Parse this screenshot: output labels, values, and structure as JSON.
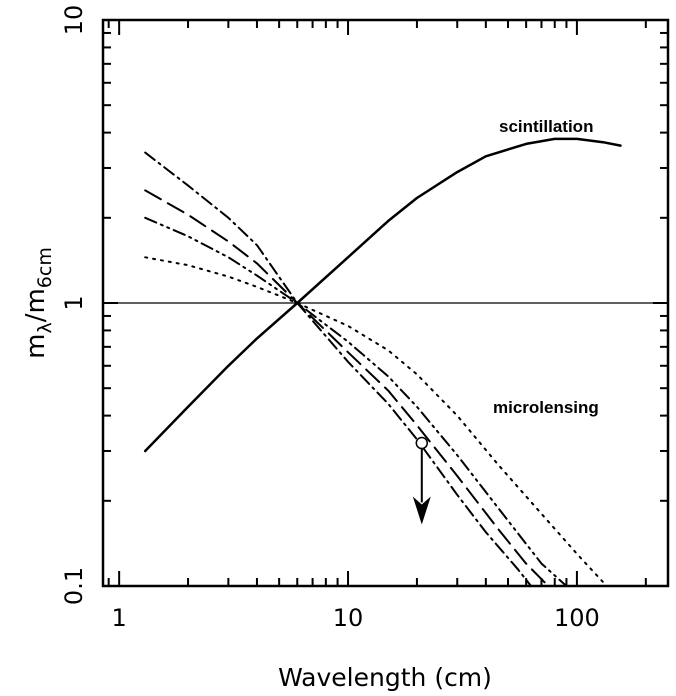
{
  "chart_data": {
    "type": "line",
    "xlabel": "Wavelength (cm)",
    "ylabel": {
      "base": "m",
      "sub1": "λ",
      "slash": "/m",
      "sub2": "6cm"
    },
    "x_scale": "log",
    "y_scale": "log",
    "xlim": [
      0.85,
      250
    ],
    "ylim": [
      0.1,
      10
    ],
    "x_ticks": [
      "1",
      "10",
      "100"
    ],
    "y_ticks": [
      "0.1",
      "1",
      "10"
    ],
    "reference_line_y": 1,
    "annotations": [
      "scintillation",
      "microlensing"
    ],
    "series": [
      {
        "style": "solid",
        "points": [
          [
            1.3,
            0.3
          ],
          [
            2,
            0.43
          ],
          [
            3,
            0.6
          ],
          [
            4,
            0.75
          ],
          [
            6,
            1.0
          ],
          [
            10,
            1.45
          ],
          [
            15,
            1.95
          ],
          [
            20,
            2.35
          ],
          [
            30,
            2.9
          ],
          [
            40,
            3.3
          ],
          [
            60,
            3.65
          ],
          [
            80,
            3.8
          ],
          [
            100,
            3.8
          ],
          [
            130,
            3.7
          ],
          [
            155,
            3.6
          ]
        ]
      },
      {
        "style": "dotted",
        "points": [
          [
            1.3,
            1.45
          ],
          [
            2,
            1.36
          ],
          [
            3,
            1.24
          ],
          [
            4,
            1.14
          ],
          [
            6,
            1.0
          ],
          [
            10,
            0.83
          ],
          [
            15,
            0.68
          ],
          [
            20,
            0.56
          ],
          [
            30,
            0.4
          ],
          [
            45,
            0.27
          ],
          [
            70,
            0.18
          ],
          [
            100,
            0.13
          ],
          [
            135,
            0.1
          ]
        ]
      },
      {
        "style": "dash-dot-dot",
        "points": [
          [
            1.3,
            2.0
          ],
          [
            2,
            1.72
          ],
          [
            3,
            1.45
          ],
          [
            4,
            1.25
          ],
          [
            6,
            1.0
          ],
          [
            10,
            0.73
          ],
          [
            15,
            0.55
          ],
          [
            20,
            0.43
          ],
          [
            30,
            0.29
          ],
          [
            45,
            0.19
          ],
          [
            70,
            0.12
          ],
          [
            90,
            0.1
          ]
        ]
      },
      {
        "style": "long-dash",
        "points": [
          [
            1.3,
            2.5
          ],
          [
            2,
            2.05
          ],
          [
            3,
            1.65
          ],
          [
            4,
            1.38
          ],
          [
            6,
            1.0
          ],
          [
            10,
            0.67
          ],
          [
            15,
            0.49
          ],
          [
            20,
            0.37
          ],
          [
            30,
            0.245
          ],
          [
            45,
            0.16
          ],
          [
            60,
            0.12
          ],
          [
            75,
            0.1
          ]
        ]
      },
      {
        "style": "dash-dot",
        "points": [
          [
            1.3,
            3.4
          ],
          [
            2,
            2.6
          ],
          [
            3,
            2.0
          ],
          [
            4,
            1.6
          ],
          [
            6,
            1.0
          ],
          [
            10,
            0.62
          ],
          [
            15,
            0.44
          ],
          [
            20,
            0.33
          ],
          [
            30,
            0.21
          ],
          [
            40,
            0.155
          ],
          [
            55,
            0.115
          ],
          [
            63,
            0.1
          ]
        ]
      }
    ],
    "upper_limit": {
      "x": 21,
      "y": 0.32,
      "arrow_to_y": 0.165
    }
  }
}
